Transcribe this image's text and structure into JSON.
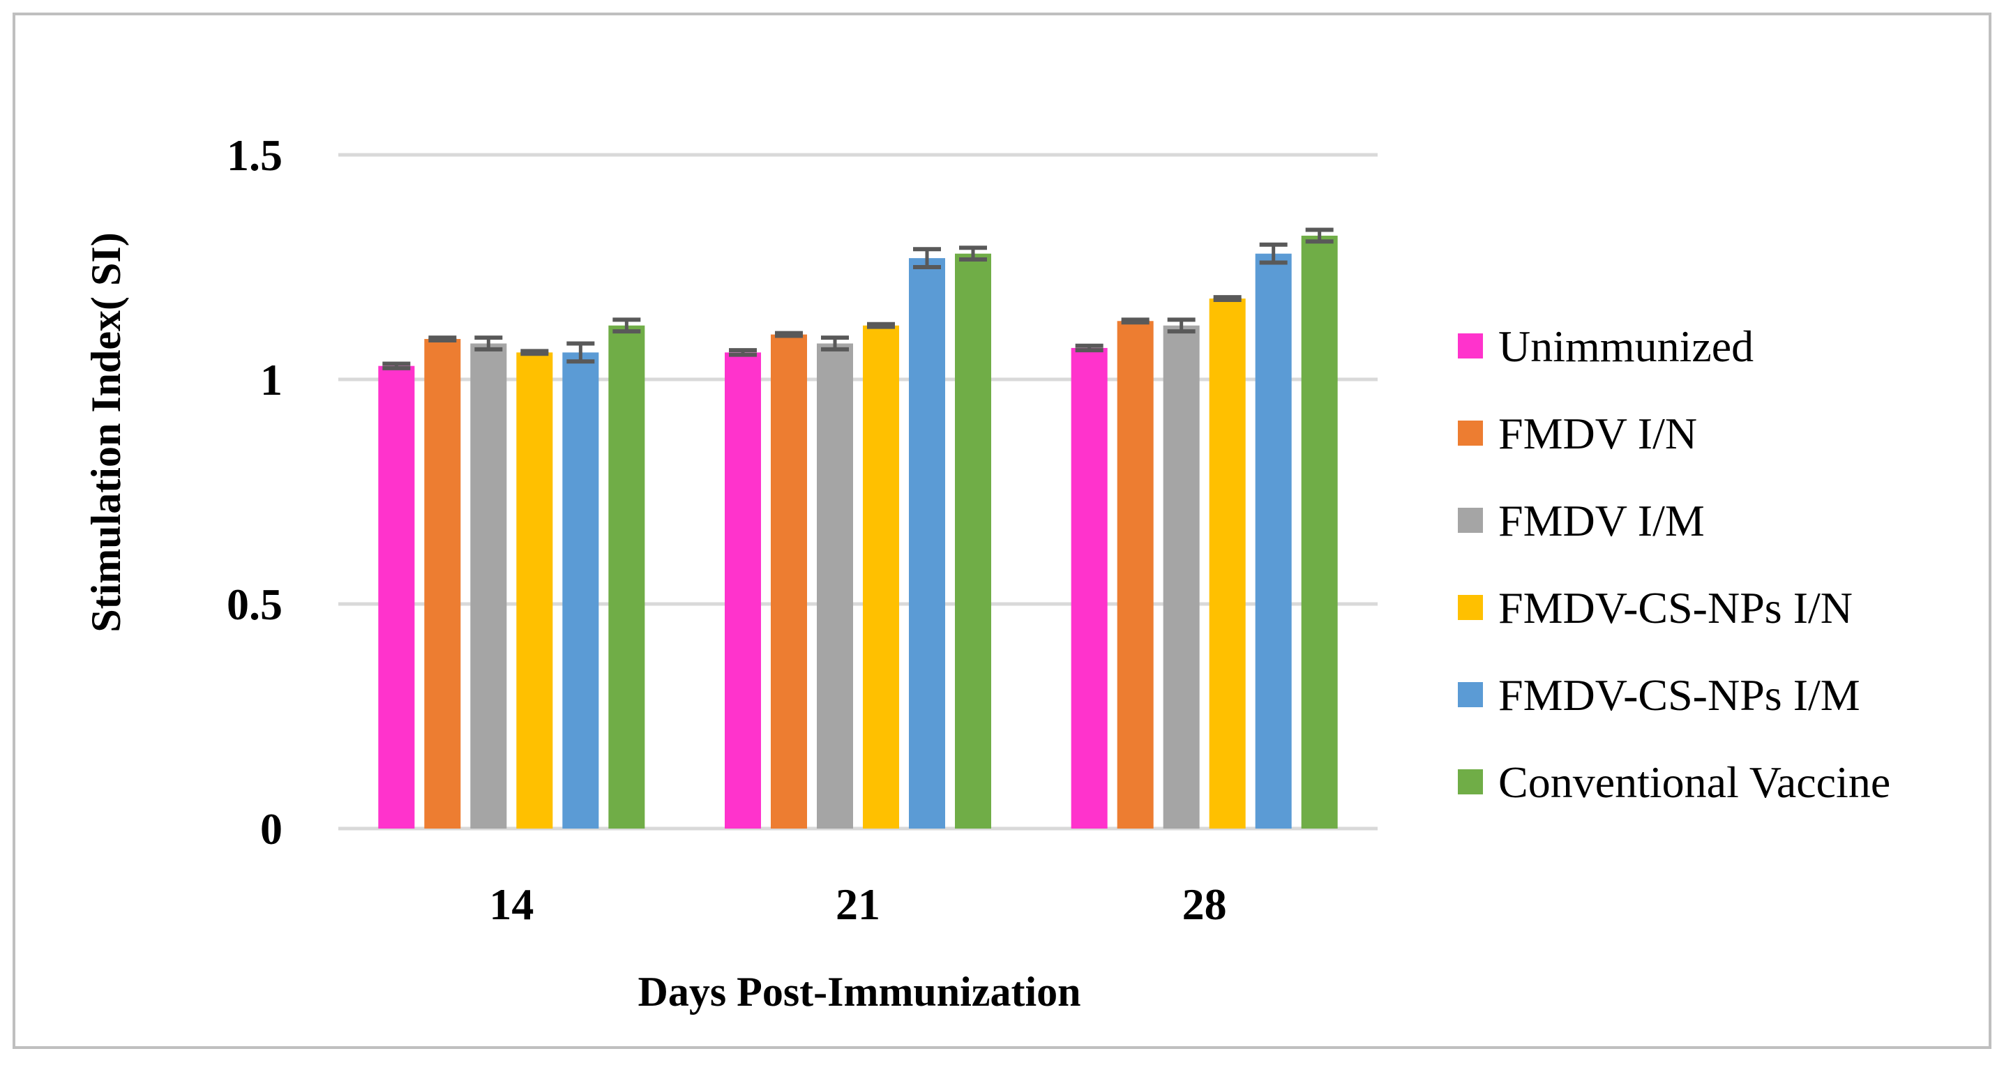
{
  "chart_data": {
    "type": "bar",
    "title": "",
    "xlabel": "Days Post-Immunization",
    "ylabel": "Stimulation Index( SI)",
    "ylim": [
      0,
      1.5
    ],
    "yticks": [
      0,
      0.5,
      1,
      1.5
    ],
    "ytick_labels": [
      "0",
      "0.5",
      "1",
      "1.5"
    ],
    "grid": true,
    "legend_position": "right",
    "categories": [
      "14",
      "21",
      "28"
    ],
    "series": [
      {
        "name": "Unimmunized",
        "color": "#ff33cc",
        "values": [
          1.03,
          1.06,
          1.07
        ],
        "errors": [
          0.005,
          0.005,
          0.005
        ]
      },
      {
        "name": "FMDV I/N",
        "color": "#ed7d31",
        "values": [
          1.09,
          1.1,
          1.13
        ],
        "errors": [
          0.003,
          0.003,
          0.003
        ]
      },
      {
        "name": "FMDV I/M",
        "color": "#a5a5a5",
        "values": [
          1.08,
          1.08,
          1.12
        ],
        "errors": [
          0.013,
          0.013,
          0.013
        ]
      },
      {
        "name": "FMDV-CS-NPs I/N",
        "color": "#ffc000",
        "values": [
          1.06,
          1.12,
          1.18
        ],
        "errors": [
          0.003,
          0.003,
          0.003
        ]
      },
      {
        "name": "FMDV-CS-NPs I/M",
        "color": "#5b9bd5",
        "values": [
          1.06,
          1.27,
          1.28
        ],
        "errors": [
          0.02,
          0.02,
          0.02
        ]
      },
      {
        "name": "Conventional Vaccine",
        "color": "#70ad47",
        "values": [
          1.12,
          1.28,
          1.32
        ],
        "errors": [
          0.013,
          0.013,
          0.013
        ]
      }
    ]
  },
  "style": {
    "grid_color": "#d9d9d9",
    "error_bar_color": "#595959",
    "frame_color": "#bfbfbf"
  }
}
